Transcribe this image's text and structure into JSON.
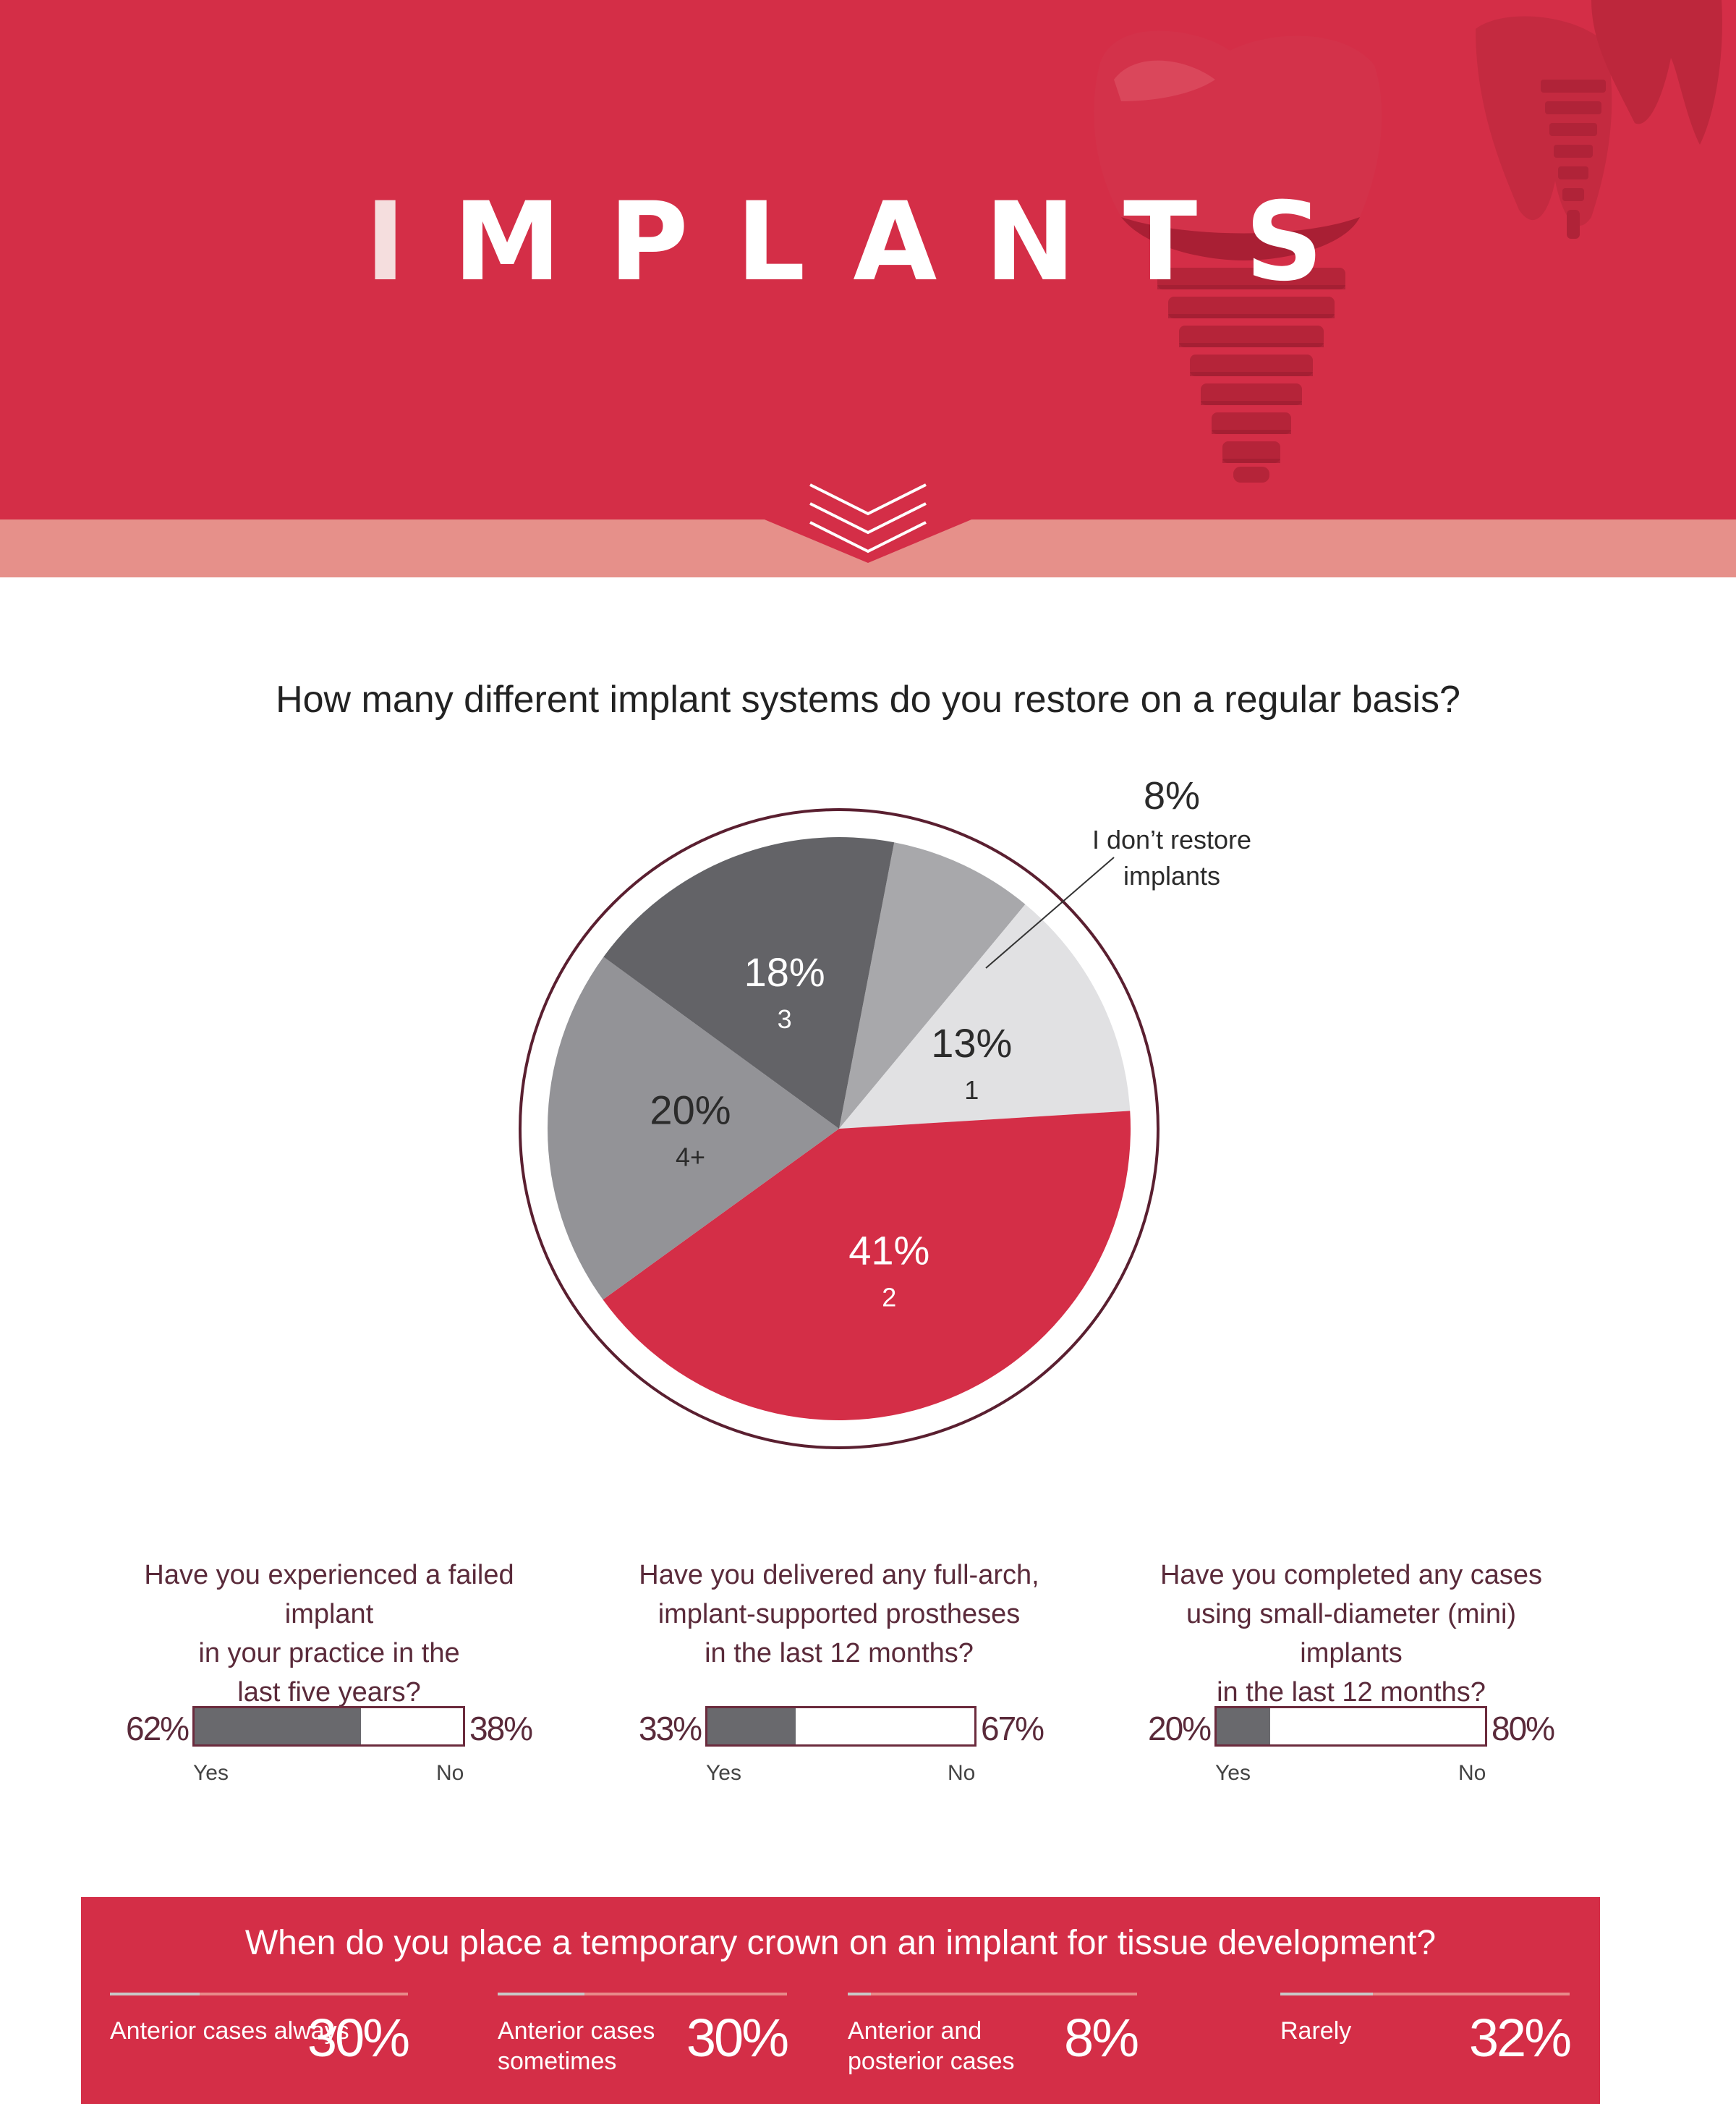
{
  "header": {
    "title_first": "I",
    "title_rest": "MPLANTS",
    "colors": {
      "primary": "#d42e47",
      "band": "#e6908a"
    }
  },
  "chart_data": [
    {
      "type": "pie",
      "title": "How many different implant systems do you restore on a regular basis?",
      "slices": [
        {
          "value": 8,
          "pct_label": "8%",
          "label": "I don’t restore implants",
          "color": "#a8a8ab"
        },
        {
          "value": 13,
          "pct_label": "13%",
          "label": "1",
          "color": "#e1e1e3"
        },
        {
          "value": 41,
          "pct_label": "41%",
          "label": "2",
          "color": "#d42e47"
        },
        {
          "value": 20,
          "pct_label": "20%",
          "label": "4+",
          "color": "#939397"
        },
        {
          "value": 18,
          "pct_label": "18%",
          "label": "3",
          "color": "#636367"
        }
      ]
    },
    {
      "type": "bar",
      "title": "Have you experienced a failed implant in your practice in the last five years?",
      "categories": [
        "Yes",
        "No"
      ],
      "values": [
        62,
        38
      ]
    },
    {
      "type": "bar",
      "title": "Have you delivered any full-arch, implant-supported prostheses in the last 12 months?",
      "categories": [
        "Yes",
        "No"
      ],
      "values": [
        33,
        67
      ]
    },
    {
      "type": "bar",
      "title": "Have you completed any cases using small-diameter (mini) implants in the last 12 months?",
      "categories": [
        "Yes",
        "No"
      ],
      "values": [
        20,
        80
      ]
    },
    {
      "type": "bar",
      "title": "When do you place a temporary crown on an implant for tissue development?",
      "categories": [
        "Anterior cases always",
        "Anterior cases sometimes",
        "Anterior and posterior cases",
        "Rarely"
      ],
      "values": [
        30,
        30,
        8,
        32
      ]
    }
  ],
  "yesno": [
    {
      "lines": [
        "Have you experienced a failed implant",
        "in your practice in the",
        "last five years?"
      ],
      "yes_pct": "62%",
      "no_pct": "38%",
      "yes_value": 62,
      "yes_label": "Yes",
      "no_label": "No"
    },
    {
      "lines": [
        "Have you delivered any full-arch,",
        "implant-supported prostheses",
        "in the last 12 months?"
      ],
      "yes_pct": "33%",
      "no_pct": "67%",
      "yes_value": 33,
      "yes_label": "Yes",
      "no_label": "No"
    },
    {
      "lines": [
        "Have you completed any cases",
        "using small-diameter (mini) implants",
        "in the last 12 months?"
      ],
      "yes_pct": "20%",
      "no_pct": "80%",
      "yes_value": 20,
      "yes_label": "Yes",
      "no_label": "No"
    }
  ],
  "temporary_crown": {
    "question": "When do you place a temporary crown on an implant for tissue development?",
    "items": [
      {
        "lines": [
          "Anterior cases always"
        ],
        "pct": "30%",
        "value": 30
      },
      {
        "lines": [
          "Anterior cases",
          "sometimes"
        ],
        "pct": "30%",
        "value": 30
      },
      {
        "lines": [
          "Anterior and",
          "posterior cases"
        ],
        "pct": "8%",
        "value": 8
      },
      {
        "lines": [
          "Rarely"
        ],
        "pct": "32%",
        "value": 32
      }
    ]
  }
}
